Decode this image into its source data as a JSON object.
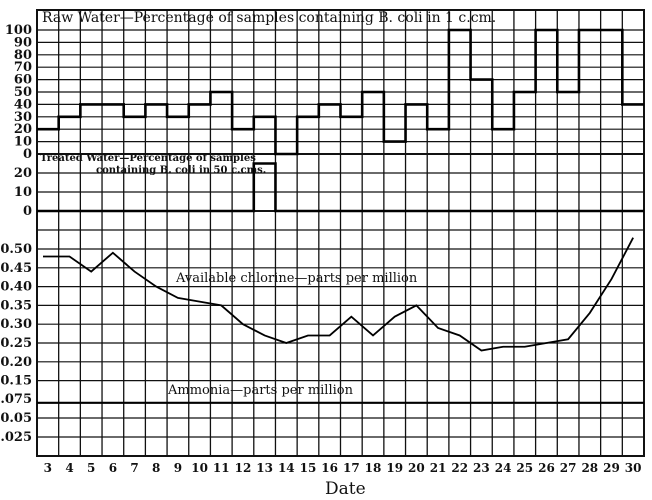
{
  "chart_data": {
    "type": "line",
    "xlabel": "Date",
    "x": [
      3,
      4,
      5,
      6,
      7,
      8,
      9,
      10,
      11,
      12,
      13,
      14,
      15,
      16,
      17,
      18,
      19,
      20,
      21,
      22,
      23,
      24,
      25,
      26,
      27,
      28,
      29,
      30
    ],
    "panels": [
      {
        "name": "raw_water",
        "type": "step",
        "title": "Raw Water—Percentage of samples containing B. coli in 1 c.cm.",
        "ylim": [
          0,
          100
        ],
        "yticks": [
          0,
          10,
          20,
          30,
          40,
          50,
          60,
          70,
          80,
          90,
          100
        ],
        "values": [
          20,
          30,
          40,
          40,
          30,
          40,
          30,
          40,
          50,
          20,
          30,
          0,
          30,
          40,
          30,
          50,
          10,
          40,
          20,
          100,
          60,
          20,
          50,
          100,
          50,
          100,
          100,
          40
        ]
      },
      {
        "name": "treated_water",
        "type": "step",
        "title": "Treated Water—Percentage of samples containing B. coli in 50 c.cms.",
        "ylim": [
          0,
          20
        ],
        "yticks": [
          0,
          10,
          20
        ],
        "values": [
          0,
          0,
          0,
          0,
          0,
          0,
          0,
          0,
          0,
          0,
          25,
          0,
          0,
          0,
          0,
          0,
          0,
          0,
          0,
          0,
          0,
          0,
          0,
          0,
          0,
          0,
          0,
          0
        ]
      },
      {
        "name": "available_chlorine",
        "type": "line",
        "title": "Available chlorine—parts per million",
        "ylim": [
          0.15,
          0.5
        ],
        "yticks": [
          0.2,
          0.25,
          0.3,
          0.35,
          0.4,
          0.45,
          0.5
        ],
        "values": [
          0.48,
          0.48,
          0.44,
          0.49,
          0.44,
          0.4,
          0.37,
          0.36,
          0.35,
          0.3,
          0.27,
          0.25,
          0.27,
          0.27,
          0.32,
          0.27,
          0.32,
          0.35,
          0.29,
          0.27,
          0.23,
          0.24,
          0.24,
          0.25,
          0.26,
          0.33,
          0.42,
          0.53
        ]
      },
      {
        "name": "ammonia",
        "type": "line",
        "title": "Ammonia—parts per million",
        "ylim": [
          0,
          0.15
        ],
        "yticks": [
          0.025,
          0.05,
          0.075,
          0.15
        ],
        "values": [
          0.07,
          0.07,
          0.07,
          0.07,
          0.07,
          0.07,
          0.07,
          0.07,
          0.07,
          0.07,
          0.07,
          0.07,
          0.07,
          0.07,
          0.07,
          0.07,
          0.07,
          0.07,
          0.07,
          0.07,
          0.07,
          0.07,
          0.07,
          0.07,
          0.07,
          0.07,
          0.07,
          0.07
        ]
      }
    ],
    "grid": true
  },
  "labels": {
    "raw_title": "Raw Water—Percentage of samples containing B. coli in 1 c.cm.",
    "treated_title_1": "Treated Water—Percentage of samples",
    "treated_title_2": "containing B. coli in 50 c.cms.",
    "chlorine_title": "Available chlorine—parts per million",
    "ammonia_title": "Ammonia—parts per million",
    "xlabel": "Date",
    "raw_ticks": [
      "100",
      "90",
      "80",
      "70",
      "60",
      "50",
      "40",
      "30",
      "20",
      "10",
      "0"
    ],
    "treated_ticks": [
      "20",
      "10",
      "0"
    ],
    "chlorine_ticks": [
      "0.50",
      "0.45",
      "0.40",
      "0.35",
      "0.30",
      "0.25",
      "0.20",
      "0.15"
    ],
    "ammonia_ticks": [
      "0.075",
      "0.05",
      "0.025"
    ],
    "dates": [
      "3",
      "4",
      "5",
      "6",
      "7",
      "8",
      "9",
      "10",
      "11",
      "12",
      "13",
      "14",
      "15",
      "16",
      "17",
      "18",
      "19",
      "20",
      "21",
      "22",
      "23",
      "24",
      "25",
      "26",
      "27",
      "28",
      "29",
      "30"
    ]
  }
}
